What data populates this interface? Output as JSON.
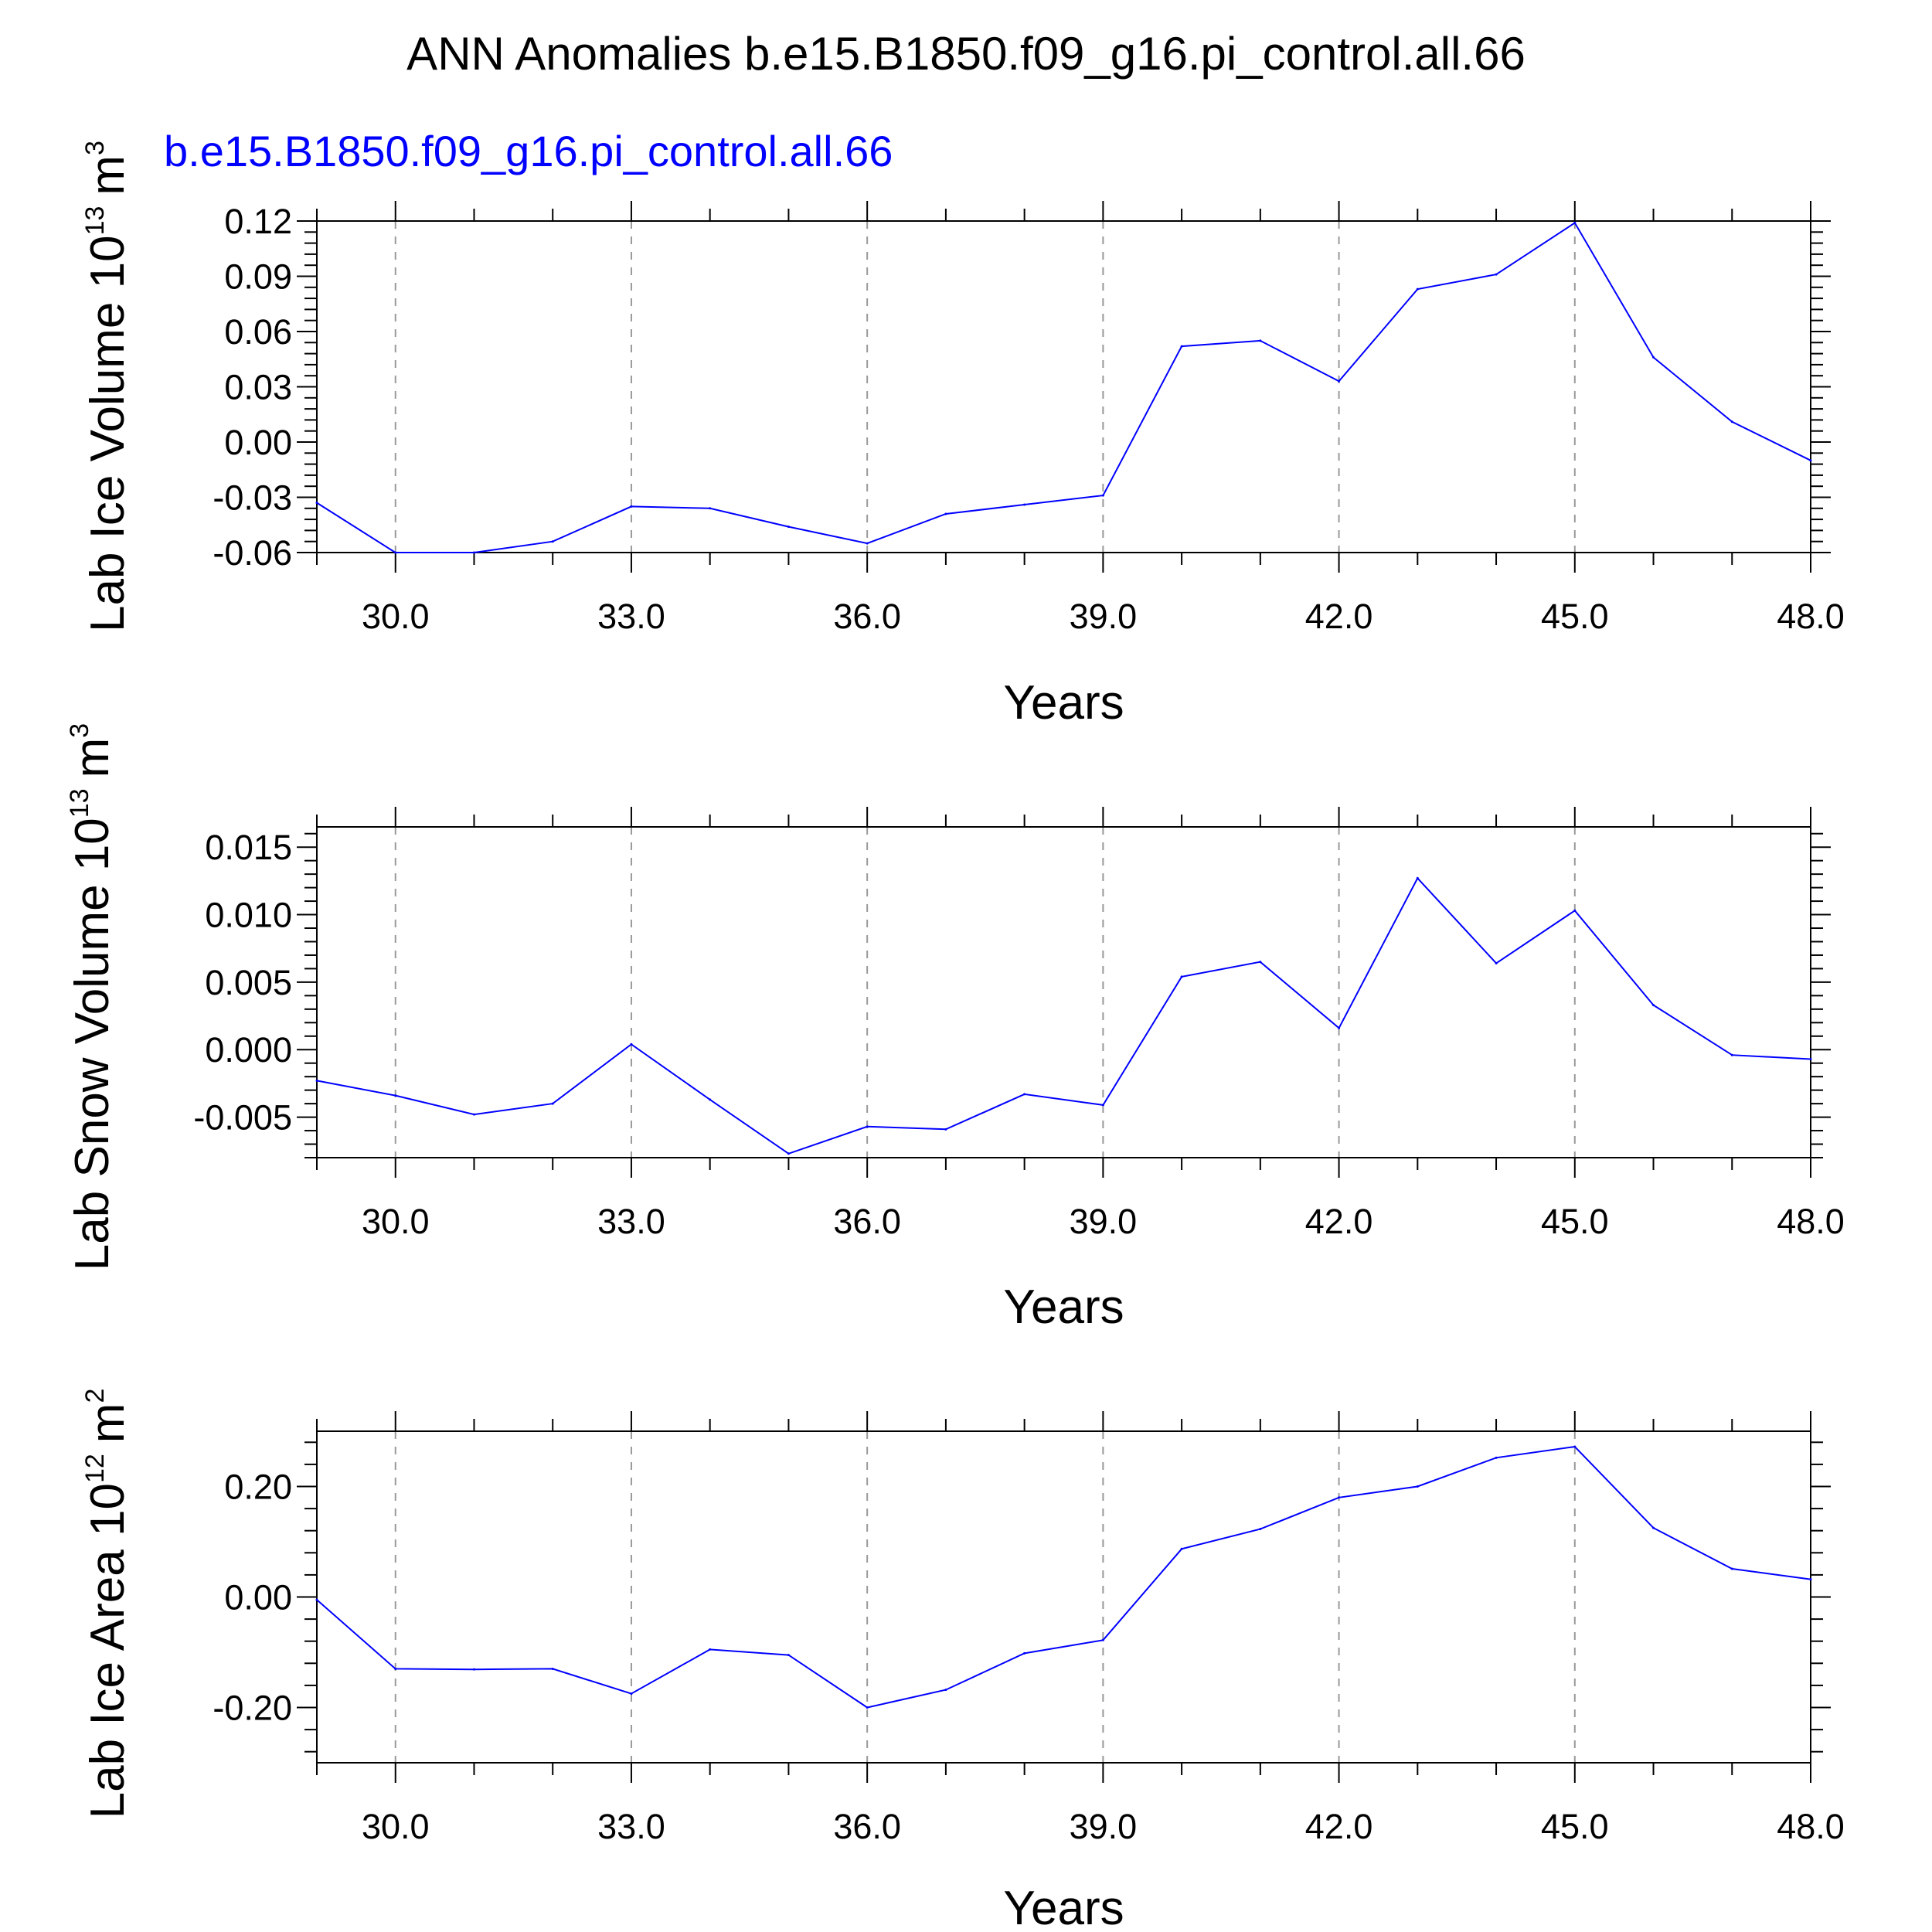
{
  "title": "ANN Anomalies b.e15.B1850.f09_g16.pi_control.all.66",
  "colors": {
    "series": "#0000ff",
    "text": "#000000",
    "grid": "#999999"
  },
  "chart_data": [
    {
      "type": "line",
      "subtitle": "b.e15.B1850.f09_g16.pi_control.all.66",
      "xlabel": "Years",
      "ylabel": {
        "text": "Lab Ice Volume 10",
        "exp": "13",
        "unit": "m",
        "unit_exp": "3"
      },
      "xlim": [
        29,
        48
      ],
      "ylim": [
        -0.06,
        0.12
      ],
      "x_ticks": [
        "30.0",
        "33.0",
        "36.0",
        "39.0",
        "42.0",
        "45.0",
        "48.0"
      ],
      "y_ticks": [
        "-0.06",
        "-0.03",
        "0.00",
        "0.03",
        "0.06",
        "0.09",
        "0.12"
      ],
      "series": [
        {
          "name": "b.e15.B1850.f09_g16.pi_control.all.66",
          "x": [
            29,
            30,
            31,
            32,
            33,
            34,
            35,
            36,
            37,
            38,
            39,
            40,
            41,
            42,
            43,
            44,
            45,
            46,
            47,
            48
          ],
          "values": [
            -0.033,
            -0.06,
            -0.06,
            -0.054,
            -0.035,
            -0.036,
            -0.046,
            -0.055,
            -0.039,
            -0.034,
            -0.029,
            0.052,
            0.055,
            0.033,
            0.083,
            0.091,
            0.119,
            0.046,
            0.011,
            -0.01
          ]
        }
      ]
    },
    {
      "type": "line",
      "xlabel": "Years",
      "ylabel": {
        "text": "Lab Snow Volume 10",
        "exp": "13",
        "unit": "m",
        "unit_exp": "3"
      },
      "xlim": [
        29,
        48
      ],
      "ylim": [
        -0.008,
        0.0165
      ],
      "x_ticks": [
        "30.0",
        "33.0",
        "36.0",
        "39.0",
        "42.0",
        "45.0",
        "48.0"
      ],
      "y_ticks": [
        "-0.005",
        "0.000",
        "0.005",
        "0.010",
        "0.015"
      ],
      "series": [
        {
          "name": "b.e15.B1850.f09_g16.pi_control.all.66",
          "x": [
            29,
            30,
            31,
            32,
            33,
            34,
            35,
            36,
            37,
            38,
            39,
            40,
            41,
            42,
            43,
            44,
            45,
            46,
            47,
            48
          ],
          "values": [
            -0.0023,
            -0.0034,
            -0.0048,
            -0.004,
            0.0004,
            -0.0037,
            -0.0077,
            -0.0057,
            -0.0059,
            -0.0033,
            -0.0041,
            0.0054,
            0.0065,
            0.0016,
            0.0127,
            0.0064,
            0.0103,
            0.0033,
            -0.0004,
            -0.0007
          ]
        }
      ]
    },
    {
      "type": "line",
      "xlabel": "Years",
      "ylabel": {
        "text": "Lab Ice Area 10",
        "exp": "12",
        "unit": "m",
        "unit_exp": "2"
      },
      "xlim": [
        29,
        48
      ],
      "ylim": [
        -0.3,
        0.3
      ],
      "x_ticks": [
        "30.0",
        "33.0",
        "36.0",
        "39.0",
        "42.0",
        "45.0",
        "48.0"
      ],
      "y_ticks": [
        "-0.20",
        "0.00",
        "0.20"
      ],
      "series": [
        {
          "name": "b.e15.B1850.f09_g16.pi_control.all.66",
          "x": [
            29,
            30,
            31,
            32,
            33,
            34,
            35,
            36,
            37,
            38,
            39,
            40,
            41,
            42,
            43,
            44,
            45,
            46,
            47,
            48
          ],
          "values": [
            -0.005,
            -0.13,
            -0.131,
            -0.13,
            -0.175,
            -0.095,
            -0.105,
            -0.2,
            -0.168,
            -0.102,
            -0.078,
            0.087,
            0.123,
            0.18,
            0.2,
            0.252,
            0.272,
            0.125,
            0.051,
            0.032
          ]
        }
      ]
    }
  ]
}
